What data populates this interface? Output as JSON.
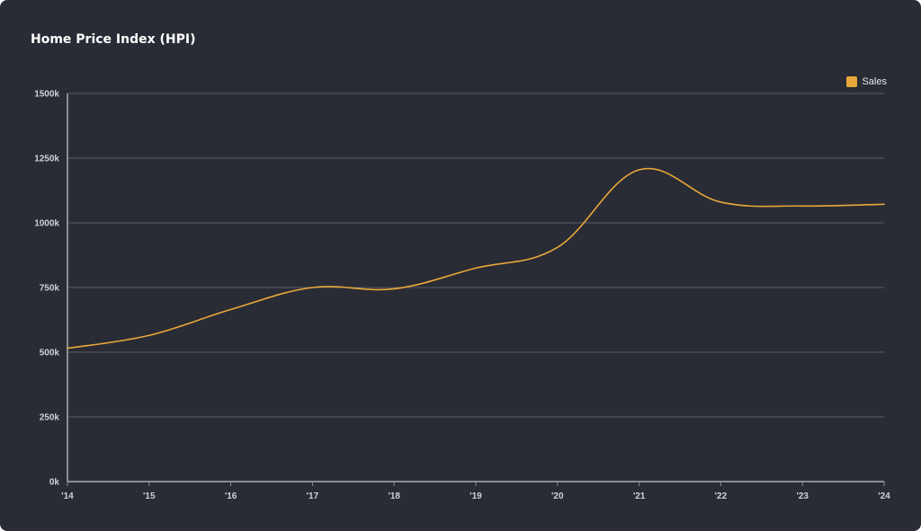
{
  "chart_data": {
    "type": "line",
    "title": "Home Price Index (HPI)",
    "xlabel": "",
    "ylabel": "",
    "x": [
      "'14",
      "'15",
      "'16",
      "'17",
      "'18",
      "'19",
      "'20",
      "'21",
      "'22",
      "'23",
      "'24"
    ],
    "series": [
      {
        "name": "Sales",
        "color": "#e8a73a",
        "values": [
          515000,
          565000,
          665000,
          750000,
          745000,
          825000,
          905000,
          1205000,
          1080000,
          1065000,
          1072000
        ]
      }
    ],
    "yticks": [
      "0k",
      "250k",
      "500k",
      "750k",
      "1000k",
      "1250k",
      "1500k"
    ],
    "ylim": [
      0,
      1500000
    ],
    "grid": true,
    "legend_position": "top-right"
  },
  "colors": {
    "background": "#292c34",
    "grid": "#5a5e67",
    "axis": "#8a8e97",
    "line": "#e8a73a"
  }
}
